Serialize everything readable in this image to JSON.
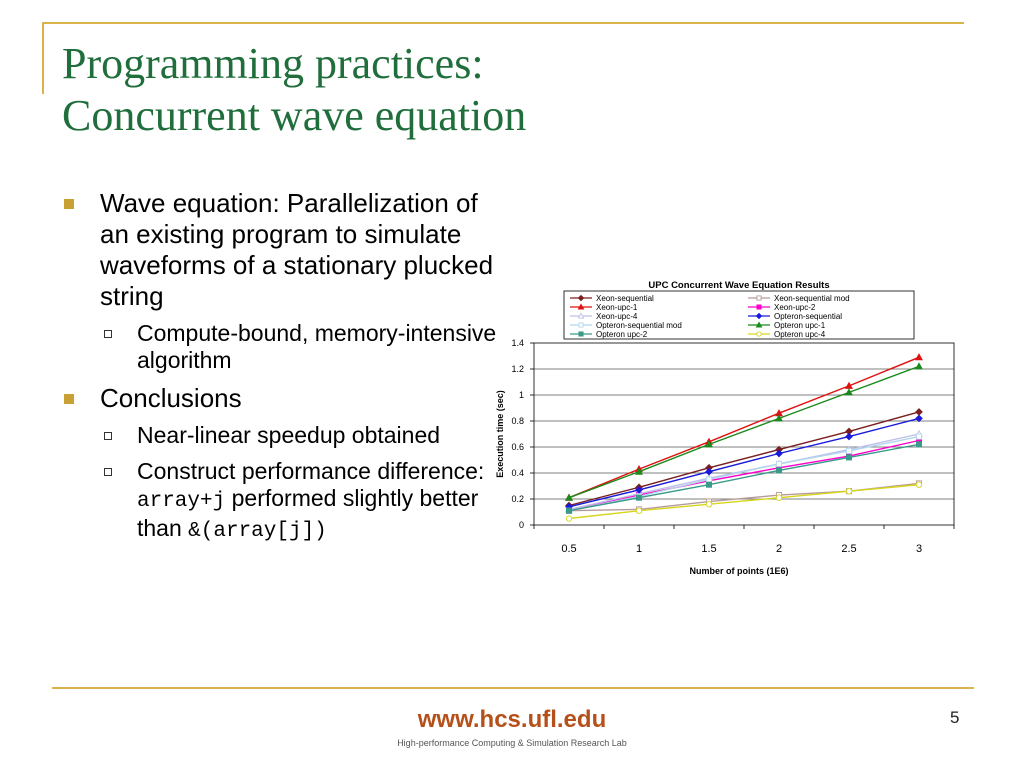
{
  "slide": {
    "title_line1": "Programming practices:",
    "title_line2": "Concurrent wave equation",
    "bullets": [
      {
        "text": "Wave equation: Parallelization of an existing program to simulate waveforms of a stationary plucked string"
      },
      {
        "sub": "Compute-bound, memory-intensive algorithm"
      },
      {
        "text": "Conclusions"
      },
      {
        "sub": "Near-linear speedup obtained"
      },
      {
        "sub_pre": "Construct performance difference: ",
        "code1": "array+j",
        "sub_mid": " performed slightly better than ",
        "code2": "&(array[j])"
      }
    ],
    "footer_url": "www.hcs.ufl.edu",
    "footer_sub": "High-performance Computing & Simulation Research Lab",
    "page_number": "5"
  },
  "chart_data": {
    "type": "line",
    "title": "UPC Concurrent Wave Equation Results",
    "xlabel": "Number of points (1E6)",
    "ylabel": "Execution time (sec)",
    "categories": [
      "0.5",
      "1",
      "1.5",
      "2",
      "2.5",
      "3"
    ],
    "ylim": [
      0,
      1.4
    ],
    "yticks": [
      "0",
      "0.2",
      "0.4",
      "0.6",
      "0.8",
      "1",
      "1.2",
      "1.4"
    ],
    "grid": true,
    "legend_position": "top",
    "series": [
      {
        "name": "Xeon-sequential",
        "color": "#7a1f1f",
        "marker": "diamond",
        "fill": true,
        "values": [
          0.15,
          0.29,
          0.44,
          0.58,
          0.72,
          0.87
        ]
      },
      {
        "name": "Xeon-sequential mod",
        "color": "#b89a9a",
        "marker": "square",
        "fill": false,
        "values": [
          0.11,
          0.12,
          0.18,
          0.23,
          0.26,
          0.32
        ]
      },
      {
        "name": "Xeon-upc-1",
        "color": "#e01010",
        "marker": "triangle",
        "fill": true,
        "values": [
          0.21,
          0.43,
          0.64,
          0.86,
          1.07,
          1.29
        ]
      },
      {
        "name": "Xeon-upc-2",
        "color": "#ff00cc",
        "marker": "square",
        "fill": true,
        "values": [
          0.11,
          0.23,
          0.34,
          0.44,
          0.53,
          0.65
        ]
      },
      {
        "name": "Xeon-upc-4",
        "color": "#bfbfe8",
        "marker": "triangle",
        "fill": false,
        "values": [
          0.12,
          0.24,
          0.36,
          0.47,
          0.58,
          0.7
        ]
      },
      {
        "name": "Opteron-sequential",
        "color": "#1a1adb",
        "marker": "diamond",
        "fill": true,
        "values": [
          0.14,
          0.27,
          0.41,
          0.55,
          0.68,
          0.82
        ]
      },
      {
        "name": "Opteron-sequential mod",
        "color": "#b0d8ee",
        "marker": "square",
        "fill": false,
        "values": [
          0.11,
          0.22,
          0.35,
          0.47,
          0.57,
          0.68
        ]
      },
      {
        "name": "Opteron upc-1",
        "color": "#1a8a1a",
        "marker": "triangle",
        "fill": true,
        "values": [
          0.21,
          0.41,
          0.62,
          0.82,
          1.02,
          1.22
        ]
      },
      {
        "name": "Opteron upc-2",
        "color": "#3a9a8a",
        "marker": "square",
        "fill": true,
        "values": [
          0.11,
          0.21,
          0.31,
          0.42,
          0.52,
          0.62
        ]
      },
      {
        "name": "Opteron upc-4",
        "color": "#d6d61a",
        "marker": "circle",
        "fill": false,
        "values": [
          0.05,
          0.11,
          0.16,
          0.21,
          0.26,
          0.31
        ]
      }
    ]
  }
}
